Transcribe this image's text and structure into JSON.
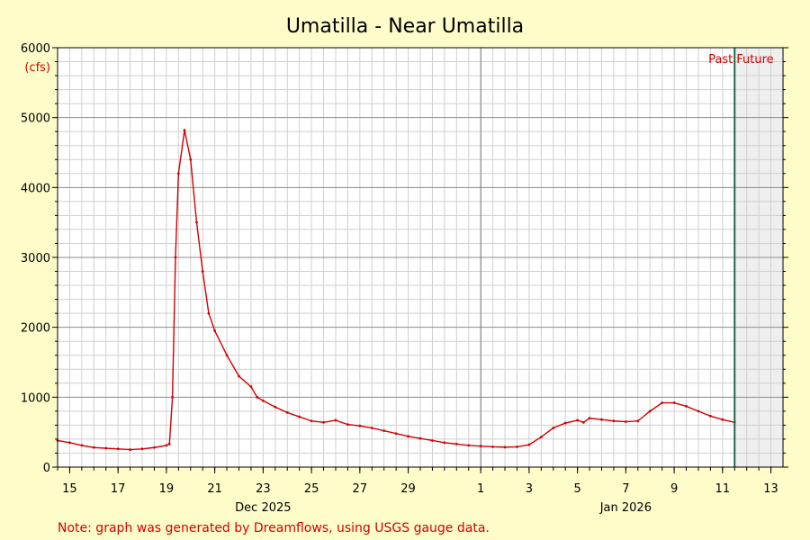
{
  "chart_data": {
    "type": "line",
    "title": "Umatilla - Near Umatilla",
    "unit_label": "(cfs)",
    "ylim": [
      0,
      6000
    ],
    "y_ticks": [
      0,
      1000,
      2000,
      3000,
      4000,
      5000,
      6000
    ],
    "xlim": [
      "2025-12-14T12:00",
      "2026-01-13T12:00"
    ],
    "x_ticks": [
      {
        "date": "2025-12-15",
        "label": "15"
      },
      {
        "date": "2025-12-17",
        "label": "17"
      },
      {
        "date": "2025-12-19",
        "label": "19"
      },
      {
        "date": "2025-12-21",
        "label": "21"
      },
      {
        "date": "2025-12-23",
        "label": "23"
      },
      {
        "date": "2025-12-25",
        "label": "25"
      },
      {
        "date": "2025-12-27",
        "label": "27"
      },
      {
        "date": "2025-12-29",
        "label": "29"
      },
      {
        "date": "2026-01-01",
        "label": "1"
      },
      {
        "date": "2026-01-03",
        "label": "3"
      },
      {
        "date": "2026-01-05",
        "label": "5"
      },
      {
        "date": "2026-01-07",
        "label": "7"
      },
      {
        "date": "2026-01-09",
        "label": "9"
      },
      {
        "date": "2026-01-11",
        "label": "11"
      },
      {
        "date": "2026-01-13",
        "label": "13"
      }
    ],
    "month_labels": [
      {
        "date": "2025-12-23",
        "label": "Dec 2025"
      },
      {
        "date": "2026-01-07",
        "label": "Jan 2026"
      }
    ],
    "month_boundary": "2026-01-01T00:00",
    "now": "2026-01-11T12:00",
    "past_label": "Past",
    "future_label": "Future",
    "grid": true,
    "series": [
      {
        "color": "#d40000",
        "points": [
          [
            "2025-12-14T12:00",
            380
          ],
          [
            "2025-12-15T00:00",
            350
          ],
          [
            "2025-12-15T12:00",
            310
          ],
          [
            "2025-12-16T00:00",
            280
          ],
          [
            "2025-12-16T12:00",
            270
          ],
          [
            "2025-12-17T00:00",
            260
          ],
          [
            "2025-12-17T12:00",
            250
          ],
          [
            "2025-12-18T00:00",
            260
          ],
          [
            "2025-12-18T12:00",
            280
          ],
          [
            "2025-12-19T00:00",
            310
          ],
          [
            "2025-12-19T03:00",
            330
          ],
          [
            "2025-12-19T06:00",
            1000
          ],
          [
            "2025-12-19T09:00",
            3000
          ],
          [
            "2025-12-19T12:00",
            4200
          ],
          [
            "2025-12-19T18:00",
            4820
          ],
          [
            "2025-12-20T00:00",
            4400
          ],
          [
            "2025-12-20T06:00",
            3500
          ],
          [
            "2025-12-20T12:00",
            2800
          ],
          [
            "2025-12-20T18:00",
            2200
          ],
          [
            "2025-12-21T00:00",
            1950
          ],
          [
            "2025-12-21T12:00",
            1600
          ],
          [
            "2025-12-22T00:00",
            1300
          ],
          [
            "2025-12-22T12:00",
            1150
          ],
          [
            "2025-12-22T18:00",
            1000
          ],
          [
            "2025-12-23T00:00",
            950
          ],
          [
            "2025-12-23T12:00",
            860
          ],
          [
            "2025-12-24T00:00",
            780
          ],
          [
            "2025-12-24T12:00",
            720
          ],
          [
            "2025-12-25T00:00",
            660
          ],
          [
            "2025-12-25T12:00",
            640
          ],
          [
            "2025-12-26T00:00",
            670
          ],
          [
            "2025-12-26T12:00",
            610
          ],
          [
            "2025-12-27T00:00",
            590
          ],
          [
            "2025-12-27T12:00",
            560
          ],
          [
            "2025-12-28T00:00",
            520
          ],
          [
            "2025-12-28T12:00",
            480
          ],
          [
            "2025-12-29T00:00",
            440
          ],
          [
            "2025-12-29T12:00",
            410
          ],
          [
            "2025-12-30T00:00",
            380
          ],
          [
            "2025-12-30T12:00",
            350
          ],
          [
            "2025-12-31T00:00",
            330
          ],
          [
            "2025-12-31T12:00",
            310
          ],
          [
            "2026-01-01T00:00",
            300
          ],
          [
            "2026-01-01T12:00",
            290
          ],
          [
            "2026-01-02T00:00",
            285
          ],
          [
            "2026-01-02T12:00",
            290
          ],
          [
            "2026-01-03T00:00",
            320
          ],
          [
            "2026-01-03T12:00",
            430
          ],
          [
            "2026-01-04T00:00",
            560
          ],
          [
            "2026-01-04T12:00",
            630
          ],
          [
            "2026-01-05T00:00",
            670
          ],
          [
            "2026-01-05T06:00",
            640
          ],
          [
            "2026-01-05T12:00",
            700
          ],
          [
            "2026-01-06T00:00",
            680
          ],
          [
            "2026-01-06T12:00",
            660
          ],
          [
            "2026-01-07T00:00",
            650
          ],
          [
            "2026-01-07T12:00",
            660
          ],
          [
            "2026-01-08T00:00",
            800
          ],
          [
            "2026-01-08T12:00",
            920
          ],
          [
            "2026-01-09T00:00",
            920
          ],
          [
            "2026-01-09T12:00",
            870
          ],
          [
            "2026-01-10T00:00",
            800
          ],
          [
            "2026-01-10T12:00",
            730
          ],
          [
            "2026-01-11T00:00",
            680
          ],
          [
            "2026-01-11T12:00",
            640
          ]
        ]
      }
    ]
  },
  "footer": {
    "note": "Note: graph was generated by Dreamflows, using USGS gauge data."
  }
}
